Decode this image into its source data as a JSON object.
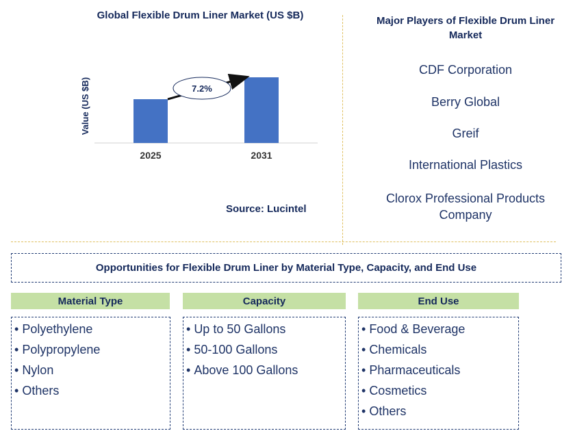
{
  "chart_data": {
    "type": "bar",
    "title": "Global Flexible Drum Liner Market (US $B)",
    "ylabel": "Value (US $B)",
    "categories": [
      "2025",
      "2031"
    ],
    "values": [
      1.0,
      1.5
    ],
    "ylim": [
      0,
      1.5
    ],
    "cagr_label": "7.2%",
    "bar_color": "#4472c4",
    "grid": false
  },
  "source": "Source: Lucintel",
  "players": {
    "title": "Major Players of Flexible Drum Liner Market",
    "items": [
      "CDF Corporation",
      "Berry Global",
      "Greif",
      "International Plastics",
      "Clorox Professional Products Company"
    ]
  },
  "opportunities": {
    "title": "Opportunities for Flexible Drum Liner by Material Type, Capacity, and End Use",
    "columns": [
      {
        "header": "Material Type",
        "items": [
          "Polyethylene",
          "Polypropylene",
          "Nylon",
          "Others"
        ]
      },
      {
        "header": "Capacity",
        "items": [
          "Up to 50 Gallons",
          "50-100 Gallons",
          "Above 100 Gallons"
        ]
      },
      {
        "header": "End Use",
        "items": [
          "Food & Beverage",
          "Chemicals",
          "Pharmaceuticals",
          "Cosmetics",
          "Others"
        ]
      }
    ]
  },
  "colors": {
    "navy": "#14285a",
    "header_green": "#c5e0a5",
    "divider_gold": "#e0c060",
    "bar_blue": "#4472c4"
  }
}
